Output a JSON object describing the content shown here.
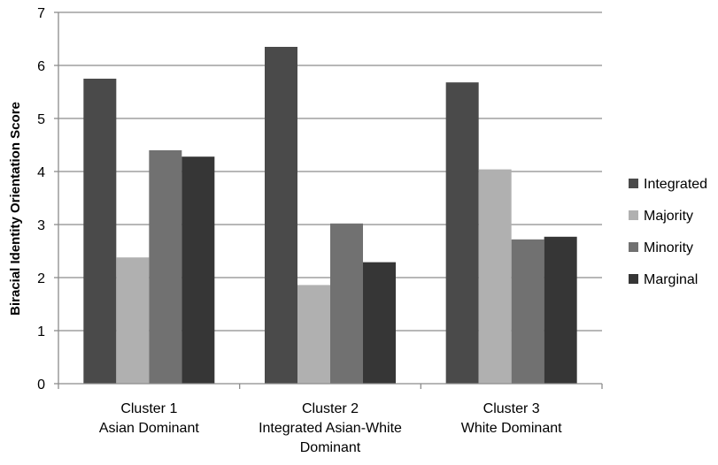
{
  "chart_data": {
    "type": "bar",
    "title": "",
    "xlabel": "",
    "ylabel": "Biracial Identity Orientation Score",
    "ylim": [
      0,
      7
    ],
    "yticks": [
      "0",
      "1",
      "2",
      "3",
      "4",
      "5",
      "6",
      "7"
    ],
    "grid": "horizontal",
    "legend_position": "right",
    "categories": [
      [
        "Cluster 1",
        "Asian Dominant"
      ],
      [
        "Cluster 2",
        "Integrated Asian-White",
        "Dominant"
      ],
      [
        "Cluster 3",
        "White Dominant"
      ]
    ],
    "series": [
      {
        "name": "Integrated",
        "color": "#4a4a4a",
        "values": [
          5.75,
          6.35,
          5.68
        ]
      },
      {
        "name": "Majority",
        "color": "#b0b0b0",
        "values": [
          2.38,
          1.86,
          4.04
        ]
      },
      {
        "name": "Minority",
        "color": "#717171",
        "values": [
          4.4,
          3.02,
          2.72
        ]
      },
      {
        "name": "Marginal",
        "color": "#363636",
        "values": [
          4.28,
          2.29,
          2.77
        ]
      }
    ]
  }
}
